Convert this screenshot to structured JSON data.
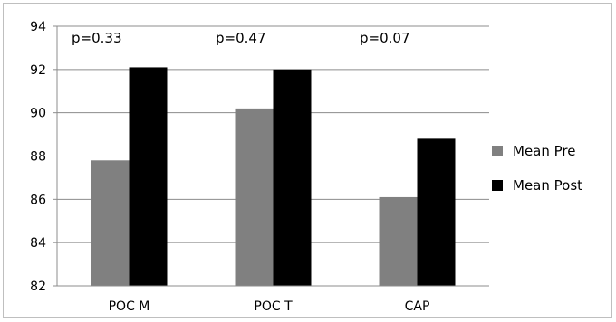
{
  "chart_data": {
    "type": "bar",
    "categories": [
      "POC M",
      "POC T",
      "CAP"
    ],
    "series": [
      {
        "name": "Mean Pre",
        "values": [
          87.8,
          90.2,
          86.1
        ],
        "color": "#808080"
      },
      {
        "name": "Mean Post",
        "values": [
          92.1,
          92.0,
          88.8
        ],
        "color": "#000000"
      }
    ],
    "annotations": [
      "p=0.33",
      "p=0.47",
      "p=0.07"
    ],
    "ylim": [
      82,
      94
    ],
    "yticks": [
      82,
      84,
      86,
      88,
      90,
      92,
      94
    ],
    "grid": true,
    "legend_position": "right",
    "title": "",
    "xlabel": "",
    "ylabel": ""
  }
}
